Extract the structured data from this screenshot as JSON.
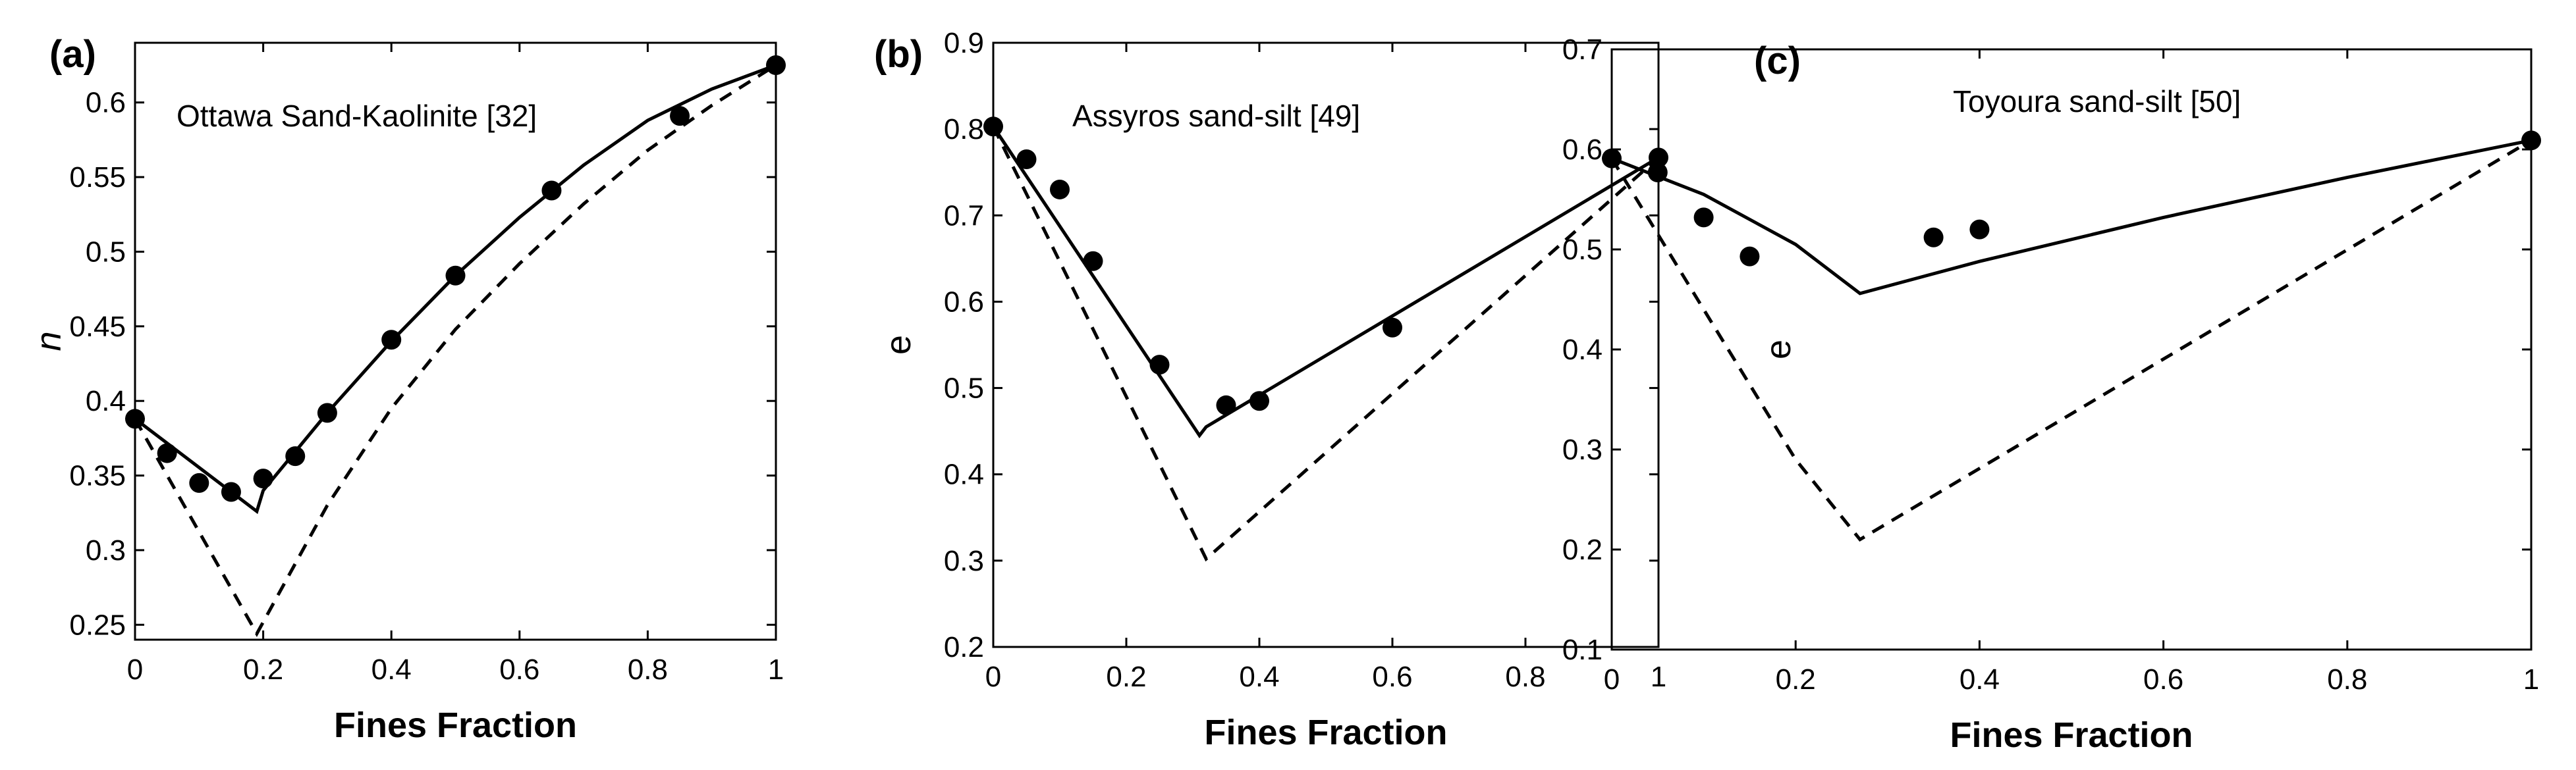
{
  "chart_data": [
    {
      "type": "scatter",
      "panel_label": "(a)",
      "annotation": "Ottawa Sand-Kaolinite [32]",
      "xlabel": "Fines Fraction",
      "ylabel": "n",
      "xlim": [
        0,
        1
      ],
      "ylim": [
        0.24,
        0.64
      ],
      "xticks": [
        0,
        0.2,
        0.4,
        0.6,
        0.8,
        1
      ],
      "xtick_labels": [
        "0",
        "0.2",
        "0.4",
        "0.6",
        "0.8",
        "1"
      ],
      "yticks": [
        0.25,
        0.3,
        0.35,
        0.4,
        0.45,
        0.5,
        0.55,
        0.6
      ],
      "ytick_labels": [
        "0.25",
        "0.3",
        "0.35",
        "0.4",
        "0.45",
        "0.5",
        "0.55",
        "0.6"
      ],
      "grid": false,
      "series": [
        {
          "kind": "markers",
          "x": [
            0,
            0.05,
            0.1,
            0.15,
            0.2,
            0.25,
            0.3,
            0.4,
            0.5,
            0.65,
            0.85,
            1.0
          ],
          "y": [
            0.388,
            0.365,
            0.345,
            0.339,
            0.348,
            0.363,
            0.392,
            0.441,
            0.484,
            0.541,
            0.591,
            0.625
          ]
        },
        {
          "kind": "solid-line",
          "x": [
            0,
            0.19,
            0.2,
            0.3,
            0.4,
            0.5,
            0.6,
            0.7,
            0.8,
            0.9,
            1.0
          ],
          "y": [
            0.388,
            0.326,
            0.34,
            0.392,
            0.44,
            0.484,
            0.523,
            0.558,
            0.588,
            0.609,
            0.625
          ]
        },
        {
          "kind": "dashed-line",
          "x": [
            0,
            0.19,
            0.3,
            0.4,
            0.5,
            0.6,
            0.7,
            0.8,
            0.9,
            1.0
          ],
          "y": [
            0.388,
            0.244,
            0.33,
            0.395,
            0.448,
            0.492,
            0.532,
            0.568,
            0.598,
            0.625
          ]
        }
      ]
    },
    {
      "type": "scatter",
      "panel_label": "(b)",
      "annotation": "Assyros sand-silt [49]",
      "xlabel": "Fines Fraction",
      "ylabel": "e",
      "xlim": [
        0,
        1
      ],
      "ylim": [
        0.2,
        0.9
      ],
      "xticks": [
        0,
        0.2,
        0.4,
        0.6,
        0.8,
        1
      ],
      "xtick_labels": [
        "0",
        "0.2",
        "0.4",
        "0.6",
        "0.8",
        "1"
      ],
      "yticks": [
        0.2,
        0.3,
        0.4,
        0.5,
        0.6,
        0.7,
        0.8,
        0.9
      ],
      "ytick_labels": [
        "0.2",
        "0.3",
        "0.4",
        "0.5",
        "0.6",
        "0.7",
        "0.8",
        "0.9"
      ],
      "grid": false,
      "series": [
        {
          "kind": "markers",
          "x": [
            0,
            0.05,
            0.1,
            0.15,
            0.25,
            0.35,
            0.4,
            0.6,
            1.0
          ],
          "y": [
            0.803,
            0.765,
            0.73,
            0.647,
            0.527,
            0.48,
            0.485,
            0.57,
            0.767
          ]
        },
        {
          "kind": "solid-line",
          "x": [
            0,
            0.31,
            0.32,
            1.0
          ],
          "y": [
            0.803,
            0.445,
            0.455,
            0.767
          ]
        },
        {
          "kind": "dashed-line",
          "x": [
            0,
            0.32,
            1.0
          ],
          "y": [
            0.803,
            0.302,
            0.767
          ]
        }
      ]
    },
    {
      "type": "scatter",
      "panel_label": "(c)",
      "annotation": "Toyoura sand-silt [50]",
      "xlabel": "Fines Fraction",
      "ylabel": "e",
      "xlim": [
        0,
        1
      ],
      "ylim": [
        0.1,
        0.7
      ],
      "xticks": [
        0,
        0.2,
        0.4,
        0.6,
        0.8,
        1
      ],
      "xtick_labels": [
        "0",
        "0.2",
        "0.4",
        "0.6",
        "0.8",
        "1"
      ],
      "yticks": [
        0.1,
        0.2,
        0.3,
        0.4,
        0.5,
        0.6,
        0.7
      ],
      "ytick_labels": [
        "0.1",
        "0.2",
        "0.3",
        "0.4",
        "0.5",
        "0.6",
        "0.7"
      ],
      "grid": false,
      "series": [
        {
          "kind": "markers",
          "x": [
            0,
            0.05,
            0.1,
            0.15,
            0.35,
            0.4,
            1.0
          ],
          "y": [
            0.591,
            0.577,
            0.532,
            0.493,
            0.512,
            0.52,
            0.609
          ]
        },
        {
          "kind": "solid-line",
          "x": [
            0,
            0.1,
            0.2,
            0.27,
            0.4,
            0.6,
            0.8,
            1.0
          ],
          "y": [
            0.591,
            0.555,
            0.505,
            0.456,
            0.488,
            0.532,
            0.572,
            0.609
          ]
        },
        {
          "kind": "dashed-line",
          "x": [
            0,
            0.1,
            0.2,
            0.27,
            1.0
          ],
          "y": [
            0.591,
            0.44,
            0.29,
            0.21,
            0.609
          ]
        }
      ]
    }
  ]
}
